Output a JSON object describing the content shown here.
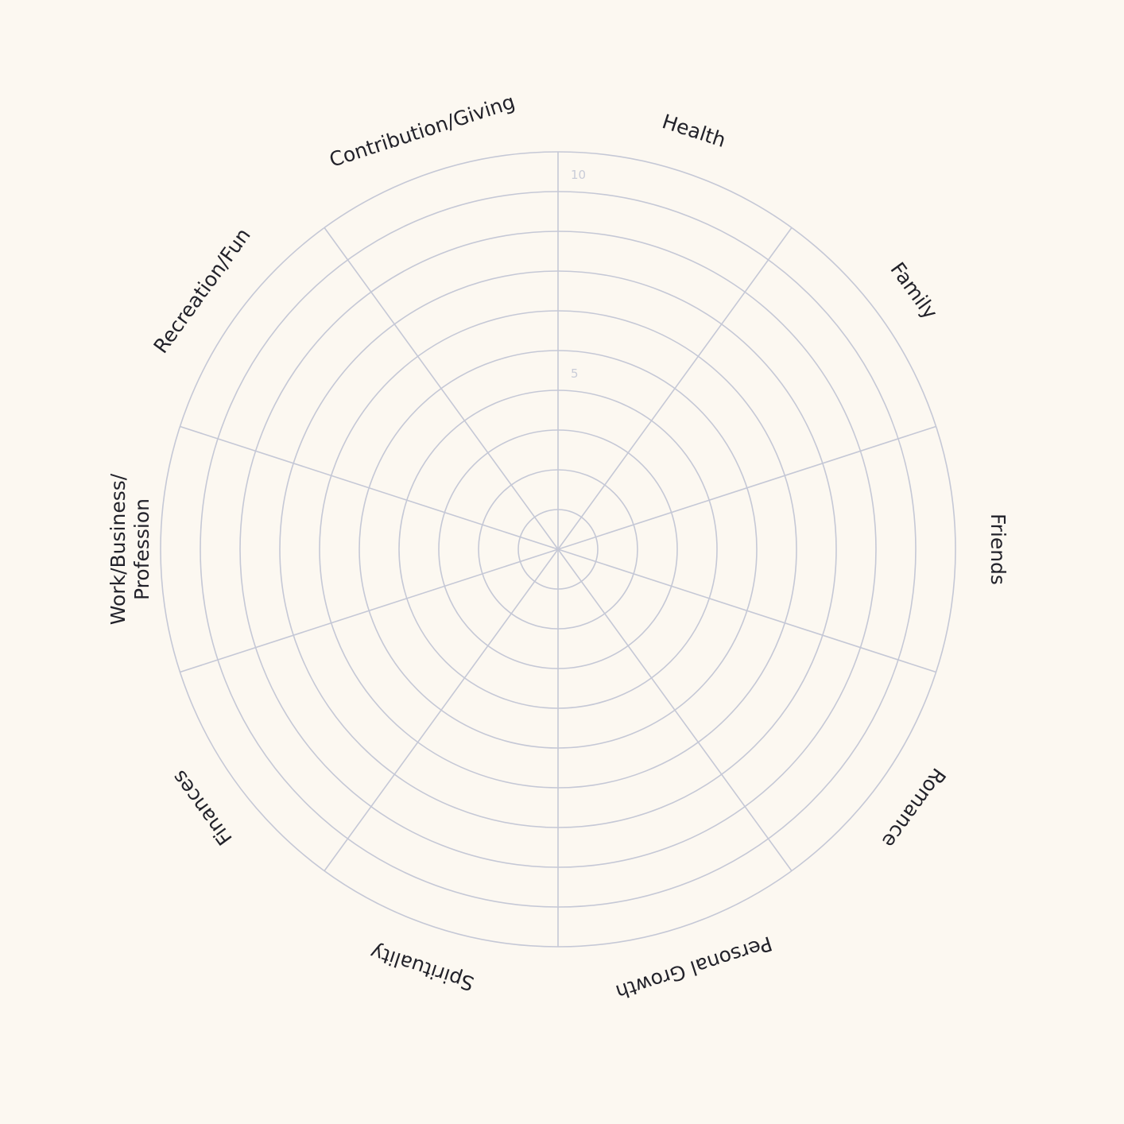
{
  "wheel": {
    "categories": [
      [
        "Health"
      ],
      [
        "Family"
      ],
      [
        "Friends"
      ],
      [
        "Romance"
      ],
      [
        "Personal Growth"
      ],
      [
        "Spirituality"
      ],
      [
        "Finances"
      ],
      [
        "Work/Business/",
        "Profession"
      ],
      [
        "Recreation/Fun"
      ],
      [
        "Contribution/Giving"
      ]
    ],
    "scale": {
      "max": 10,
      "labels": [
        5,
        10
      ]
    },
    "colors": {
      "background": "#fcf8f1",
      "grid": "#c5c8d6",
      "label": "#22222a",
      "scale_label": "#c9ccd8"
    }
  }
}
